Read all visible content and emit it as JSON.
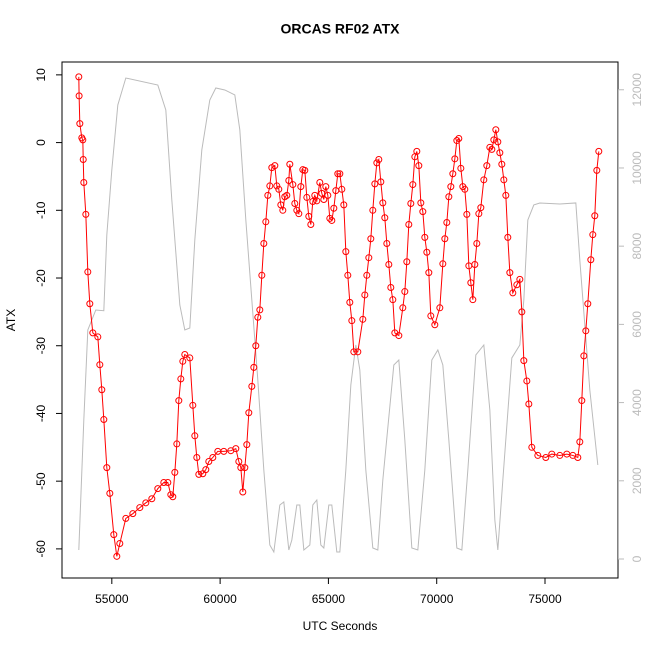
{
  "chart_data": {
    "type": "line",
    "title": "ORCAS RF02 ATX",
    "x_label": "UTC Seconds",
    "y_label": "ATX",
    "xlim": [
      52700,
      78370
    ],
    "ylim": [
      -64.3,
      11.9
    ],
    "y2lim": [
      -486,
      12710
    ],
    "xticks": [
      55000,
      60000,
      65000,
      70000,
      75000
    ],
    "yticks": [
      -60,
      -50,
      -40,
      -30,
      -20,
      -10,
      0,
      10
    ],
    "y2ticks": [
      0,
      2000,
      4000,
      6000,
      8000,
      10000,
      12000
    ],
    "y2_color": "#bbbbbb",
    "series": [
      {
        "color": "#bbbbbb",
        "axis": "y2",
        "x": [
          53476,
          53707,
          53892,
          54261,
          54631,
          54769,
          55000,
          55277,
          55646,
          57124,
          57493,
          57770,
          58140,
          58370,
          58601,
          58832,
          59155,
          59524,
          59801,
          60217,
          60679,
          60910,
          61187,
          61464,
          61741,
          62018,
          62295,
          62480,
          62757,
          62941,
          63172,
          63311,
          63541,
          63680,
          63865,
          64142,
          64280,
          64465,
          64650,
          64788,
          65019,
          65157,
          65388,
          65527,
          65804,
          66035,
          66266,
          66450,
          66727,
          67050,
          67281,
          67512,
          68020,
          68251,
          68528,
          68851,
          69128,
          69451,
          69774,
          70052,
          70283,
          70560,
          70929,
          71160,
          71437,
          71806,
          72175,
          72453,
          72684,
          72822,
          73053,
          73468,
          73838,
          74022,
          74207,
          74484,
          74761,
          75684,
          76423,
          76607,
          77069,
          77438
        ],
        "values": [
          230,
          3555,
          5857,
          6368,
          6350,
          8286,
          9949,
          11611,
          12300,
          12120,
          11483,
          9182,
          6496,
          5857,
          5908,
          8159,
          10460,
          11739,
          12046,
          11995,
          11867,
          10972,
          8670,
          6624,
          4578,
          2276,
          358,
          179,
          1381,
          1458,
          230,
          486,
          1381,
          1381,
          230,
          358,
          1381,
          1509,
          358,
          281,
          1381,
          1381,
          179,
          179,
          2276,
          4450,
          5473,
          4834,
          2276,
          281,
          230,
          2020,
          4962,
          5089,
          3043,
          281,
          230,
          2276,
          5089,
          5345,
          4962,
          3043,
          281,
          230,
          2276,
          5217,
          5473,
          3811,
          997,
          230,
          2020,
          5141,
          5473,
          6624,
          8670,
          9054,
          9105,
          9080,
          9105,
          7647,
          4322,
          2404
        ]
      },
      {
        "color": "#ff0000",
        "marker": "circle",
        "x": [
          53476,
          53490,
          53523,
          53615,
          53661,
          53680,
          53707,
          53800,
          53892,
          53984,
          54123,
          54354,
          54446,
          54538,
          54631,
          54769,
          54908,
          55092,
          55231,
          55369,
          55646,
          55970,
          56293,
          56570,
          56847,
          57124,
          57401,
          57586,
          57724,
          57816,
          57909,
          58001,
          58093,
          58186,
          58278,
          58370,
          58601,
          58740,
          58832,
          58924,
          59017,
          59201,
          59340,
          59478,
          59663,
          59894,
          60171,
          60494,
          60725,
          60864,
          60956,
          61048,
          61141,
          61233,
          61325,
          61464,
          61556,
          61648,
          61741,
          61833,
          61926,
          62018,
          62110,
          62203,
          62295,
          62387,
          62526,
          62618,
          62710,
          62803,
          62895,
          62987,
          63080,
          63172,
          63218,
          63357,
          63449,
          63541,
          63634,
          63726,
          63818,
          63911,
          64003,
          64095,
          64188,
          64280,
          64372,
          64465,
          64603,
          64696,
          64788,
          64880,
          64973,
          65065,
          65157,
          65250,
          65342,
          65434,
          65527,
          65619,
          65711,
          65804,
          65896,
          65988,
          66081,
          66173,
          66358,
          66589,
          66681,
          66773,
          66866,
          66958,
          67050,
          67143,
          67235,
          67327,
          67420,
          67512,
          67604,
          67697,
          67789,
          67881,
          67974,
          68066,
          68251,
          68435,
          68528,
          68620,
          68712,
          68805,
          68897,
          68990,
          69082,
          69174,
          69267,
          69359,
          69451,
          69544,
          69636,
          69728,
          69913,
          70144,
          70283,
          70375,
          70467,
          70560,
          70652,
          70744,
          70837,
          70929,
          71021,
          71114,
          71206,
          71298,
          71391,
          71483,
          71575,
          71668,
          71760,
          71852,
          71945,
          72037,
          72175,
          72314,
          72453,
          72545,
          72637,
          72729,
          72822,
          72914,
          73006,
          73099,
          73191,
          73283,
          73376,
          73514,
          73699,
          73838,
          73930,
          74022,
          74161,
          74253,
          74391,
          74668,
          75037,
          75314,
          75684,
          76007,
          76284,
          76515,
          76607,
          76699,
          76792,
          76884,
          76976,
          77115,
          77207,
          77299,
          77392,
          77484
        ],
        "values": [
          9.7,
          6.9,
          2.8,
          0.7,
          0.4,
          -2.5,
          -5.9,
          -10.6,
          -19.1,
          -23.8,
          -28.1,
          -28.7,
          -32.8,
          -36.5,
          -40.9,
          -48,
          -51.8,
          -57.9,
          -61.1,
          -59.2,
          -55.5,
          -54.8,
          -53.9,
          -53.2,
          -52.6,
          -51.1,
          -50.2,
          -50.2,
          -52,
          -52.3,
          -48.7,
          -44.5,
          -38.1,
          -34.9,
          -32.3,
          -31.3,
          -31.8,
          -38.8,
          -43.3,
          -46.5,
          -49,
          -48.9,
          -48.3,
          -47.1,
          -46.5,
          -45.6,
          -45.6,
          -45.5,
          -45.2,
          -47.1,
          -48,
          -51.6,
          -48,
          -44.6,
          -39.9,
          -36,
          -33.2,
          -30,
          -25.8,
          -24.7,
          -19.6,
          -14.9,
          -11.7,
          -7.8,
          -6.4,
          -3.7,
          -3.4,
          -6.4,
          -6.9,
          -9.2,
          -10,
          -8,
          -7.8,
          -5.6,
          -3.2,
          -6.2,
          -9,
          -10,
          -10.5,
          -6.5,
          -4,
          -4.1,
          -8.1,
          -10.9,
          -12.1,
          -8.7,
          -7.8,
          -8.6,
          -5.9,
          -7.5,
          -8.4,
          -6.5,
          -7.8,
          -11.2,
          -11.5,
          -9.7,
          -7.1,
          -4.6,
          -4.6,
          -6.9,
          -9.2,
          -16.1,
          -19.6,
          -23.6,
          -26.3,
          -30.9,
          -30.9,
          -26.1,
          -22.5,
          -19.6,
          -17,
          -14.2,
          -10,
          -6.1,
          -3,
          -2.5,
          -5.8,
          -8.9,
          -11.1,
          -14.9,
          -18,
          -21.4,
          -23.2,
          -28.1,
          -28.5,
          -24.4,
          -22,
          -17.6,
          -12.1,
          -9,
          -6.2,
          -2.1,
          -1.3,
          -3.4,
          -8.9,
          -10.2,
          -14,
          -16.2,
          -19.2,
          -25.6,
          -26.9,
          -24.4,
          -17.9,
          -14.2,
          -11.8,
          -8,
          -6.5,
          -4.6,
          -2.4,
          0.3,
          0.6,
          -3.8,
          -6.5,
          -6.9,
          -10.6,
          -18.2,
          -20.7,
          -23.2,
          -18,
          -14.9,
          -10.5,
          -9.6,
          -5.5,
          -3.4,
          -0.7,
          -1,
          0.4,
          1.9,
          0.1,
          -1.5,
          -3.2,
          -5.5,
          -7.8,
          -14,
          -19.2,
          -22.2,
          -21,
          -20.2,
          -25,
          -32.2,
          -35.2,
          -38.6,
          -45,
          -46.2,
          -46.5,
          -46,
          -46.2,
          -46,
          -46.2,
          -46.5,
          -44.2,
          -38.1,
          -31.5,
          -27.8,
          -23.8,
          -17.3,
          -13.6,
          -10.8,
          -4.1,
          -1.3
        ]
      }
    ]
  }
}
